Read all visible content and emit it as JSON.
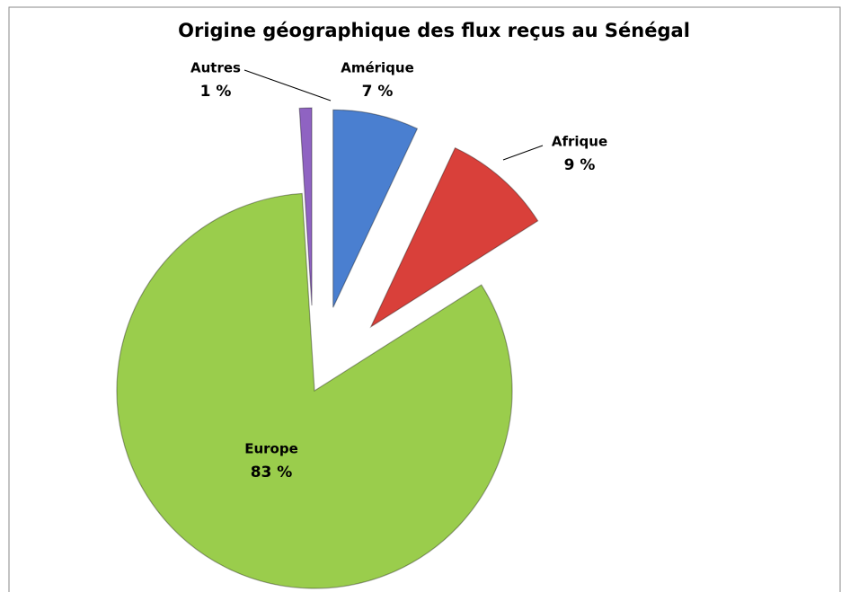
{
  "chart_data": {
    "type": "pie",
    "title": "Origine géographique des flux reçus au Sénégal",
    "categories": [
      "Amérique",
      "Afrique",
      "Europe",
      "Autres"
    ],
    "values": [
      7,
      9,
      83,
      1
    ],
    "value_labels": [
      "7 %",
      "9 %",
      "83 %",
      "1 %"
    ],
    "colors": [
      "#4a7fd0",
      "#d9403a",
      "#9acd4c",
      "#8f63c2"
    ]
  }
}
